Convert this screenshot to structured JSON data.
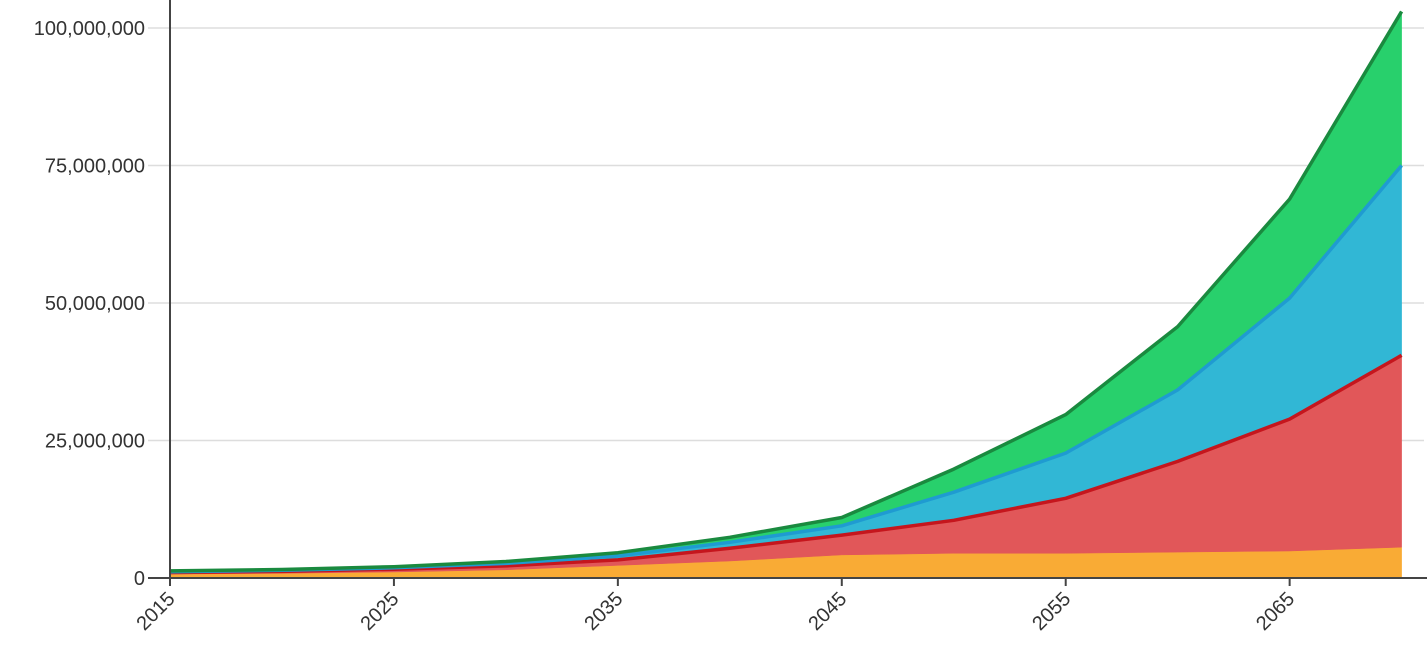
{
  "chart_data": {
    "type": "area",
    "stacked": true,
    "title": "",
    "xlabel": "",
    "ylabel": "",
    "x": [
      2015,
      2020,
      2025,
      2030,
      2035,
      2040,
      2045,
      2050,
      2055,
      2060,
      2065,
      2070
    ],
    "xlim": [
      2015,
      2071
    ],
    "ylim": [
      0,
      100000000
    ],
    "x_ticks": [
      "2015",
      "2025",
      "2035",
      "2045",
      "2055",
      "2065"
    ],
    "y_ticks": [
      "0",
      "25,000,000",
      "50,000,000",
      "75,000,000",
      "100,000,000"
    ],
    "grid": true,
    "legend": "none",
    "series": [
      {
        "color": "#f9ab35",
        "values": [
          700000,
          850000,
          1100000,
          1500000,
          2300000,
          3100000,
          4200000,
          4500000,
          4500000,
          4700000,
          4900000,
          5600000
        ]
      },
      {
        "color": "#e15759",
        "line_color": "#c5161d",
        "values": [
          300000,
          350000,
          500000,
          700000,
          1000000,
          2300000,
          3600000,
          6000000,
          10000000,
          16500000,
          24000000,
          34900000
        ]
      },
      {
        "color": "#31b7d5",
        "line_color": "#1f9bd1",
        "values": [
          150000,
          200000,
          250000,
          450000,
          700000,
          1100000,
          1700000,
          5100000,
          8200000,
          13000000,
          22000000,
          34500000
        ]
      },
      {
        "color": "#28d06c",
        "line_color": "#1a8a3f",
        "values": [
          150000,
          150000,
          200000,
          350000,
          600000,
          900000,
          1500000,
          4200000,
          7000000,
          11500000,
          18000000,
          28000000
        ]
      }
    ]
  }
}
